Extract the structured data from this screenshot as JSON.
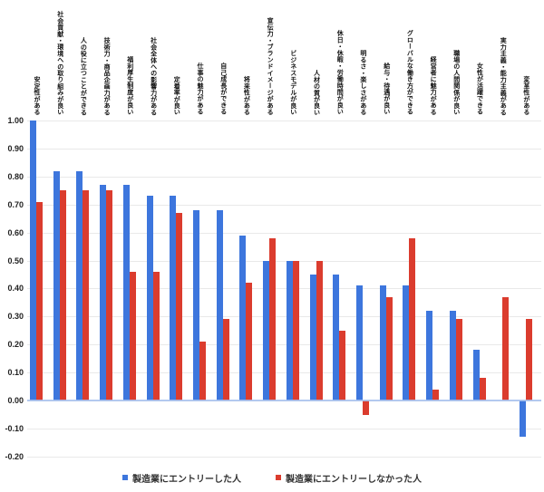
{
  "chart_data": {
    "type": "bar",
    "title": "",
    "xlabel": "",
    "ylabel": "",
    "grid": true,
    "legend_position": "bottom",
    "ylim": [
      -0.2,
      1.0
    ],
    "ytick_step": 0.1,
    "yticks": [
      {
        "value": 1.0,
        "label": "1.00"
      },
      {
        "value": 0.9,
        "label": "0.90"
      },
      {
        "value": 0.8,
        "label": "0.80"
      },
      {
        "value": 0.7,
        "label": "0.70"
      },
      {
        "value": 0.6,
        "label": "0.60"
      },
      {
        "value": 0.5,
        "label": "0.50"
      },
      {
        "value": 0.4,
        "label": "0.40"
      },
      {
        "value": 0.3,
        "label": "0.30"
      },
      {
        "value": 0.2,
        "label": "0.20"
      },
      {
        "value": 0.1,
        "label": "0.10"
      },
      {
        "value": 0.0,
        "label": "0.00"
      },
      {
        "value": -0.1,
        "label": "-0.10"
      },
      {
        "value": -0.2,
        "label": "-0.20"
      }
    ],
    "categories": [
      "安定性がある",
      "社会貢献・環境への取り組みが良い",
      "人の役に立つことができる",
      "技術力・商品企画力がある",
      "福利厚生制度が良い",
      "社会全体への影響力がある",
      "定着率が良い",
      "仕事の魅力がある",
      "自己成長ができる",
      "将来性がある",
      "宣伝力・ブランドイメージがある",
      "ビジネスモデルが良い",
      "人材の質が良い",
      "休日・休暇・労働時間が良い",
      "明るさ・楽しさがある",
      "給与・待遇が良い",
      "グローバルな働き方ができる",
      "経営者に魅力がある",
      "職場の人間関係が良い",
      "女性が活躍できる",
      "実力主義・能力主義がある",
      "変革性がある"
    ],
    "series": [
      {
        "name": "製造業にエントリーした人",
        "color": "#3d76dd",
        "values": [
          1.0,
          0.82,
          0.82,
          0.77,
          0.77,
          0.73,
          0.73,
          0.68,
          0.68,
          0.59,
          0.5,
          0.5,
          0.45,
          0.45,
          0.41,
          0.41,
          0.41,
          0.32,
          0.32,
          0.18,
          0.0,
          -0.13
        ]
      },
      {
        "name": "製造業にエントリーしなかった人",
        "color": "#db3c2e",
        "values": [
          0.71,
          0.75,
          0.75,
          0.75,
          0.46,
          0.46,
          0.67,
          0.21,
          0.29,
          0.42,
          0.58,
          0.5,
          0.5,
          0.25,
          -0.05,
          0.37,
          0.58,
          0.04,
          0.29,
          0.08,
          0.37,
          0.29
        ]
      }
    ],
    "colors": {
      "grid": "#e9e9e9",
      "zero_line": "#a8c2ee",
      "axis_text": "#222222",
      "label_text": "#111111"
    }
  }
}
